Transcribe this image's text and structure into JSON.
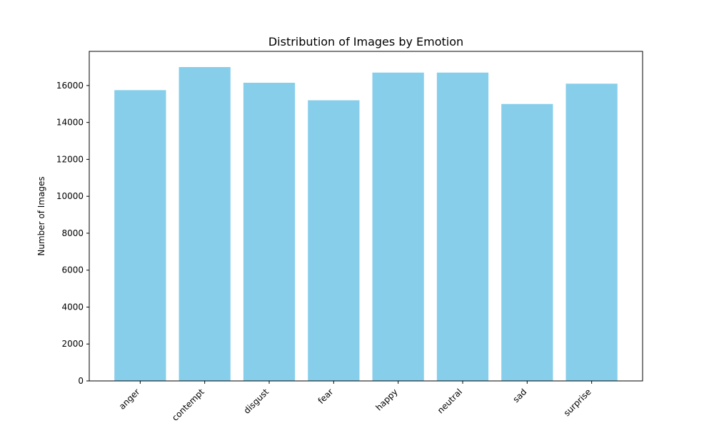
{
  "chart_data": {
    "type": "bar",
    "title": "Distribution of Images by Emotion",
    "xlabel": "",
    "ylabel": "Number of Images",
    "categories": [
      "anger",
      "contempt",
      "disgust",
      "fear",
      "happy",
      "neutral",
      "sad",
      "surprise"
    ],
    "values": [
      15750,
      17000,
      16150,
      15200,
      16700,
      16700,
      15000,
      16100
    ],
    "ylim": [
      0,
      17850
    ],
    "yticks": [
      0,
      2000,
      4000,
      6000,
      8000,
      10000,
      12000,
      14000,
      16000
    ],
    "ytick_labels": [
      "0",
      "2000",
      "4000",
      "6000",
      "8000",
      "10000",
      "12000",
      "14000",
      "16000"
    ],
    "bar_color": "#87ceeb",
    "grid": false,
    "legend": "none",
    "xtick_rotation_deg": 45
  }
}
